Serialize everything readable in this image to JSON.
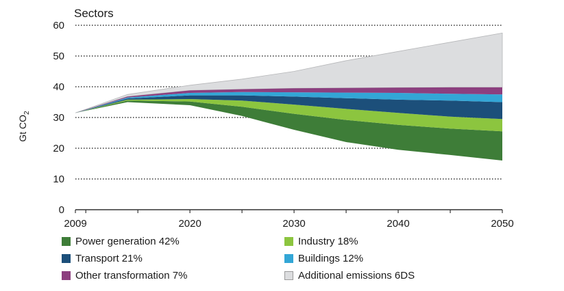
{
  "chart_data": {
    "type": "area",
    "title": "Sectors",
    "ylabel": "Gt CO",
    "ylabel_sub": "2",
    "ylim": [
      0,
      60
    ],
    "xlim": [
      2009,
      2050
    ],
    "y_ticks": [
      "0",
      "10",
      "20",
      "30",
      "40",
      "50",
      "60"
    ],
    "x_ticks": [
      "2009",
      "2020",
      "2030",
      "2040",
      "2050"
    ],
    "grid": "horizontal dotted",
    "x": [
      2009,
      2014,
      2020,
      2025,
      2030,
      2035,
      2040,
      2045,
      2050
    ],
    "baseline_6ds": [
      31.5,
      37.5,
      40.5,
      42.5,
      45,
      48.5,
      51.5,
      54.5,
      57.5
    ],
    "reduced_emissions": [
      31.5,
      35,
      34,
      30.5,
      26,
      22,
      19.5,
      17.8,
      16
    ],
    "series": [
      {
        "name": "Power generation  42%",
        "color": "#3e7d38",
        "top": [
          31.5,
          35.5,
          35.2,
          33.5,
          31.2,
          29.2,
          27.6,
          26.4,
          25.5
        ]
      },
      {
        "name": "Industry  18%",
        "color": "#8cc53f",
        "top": [
          31.5,
          35.8,
          36,
          35.5,
          34.2,
          32.8,
          31.5,
          30.3,
          29.5
        ]
      },
      {
        "name": "Transport  21%",
        "color": "#1c4f7a",
        "top": [
          31.5,
          36.2,
          37.2,
          37.2,
          36.8,
          36.3,
          35.8,
          35.5,
          35
        ]
      },
      {
        "name": "Buildings 12%",
        "color": "#33a6d6",
        "top": [
          31.5,
          36.5,
          38,
          38.3,
          38.2,
          38.1,
          38,
          37.7,
          37.5
        ]
      },
      {
        "name": "Other transformation  7%",
        "color": "#8c3f7f",
        "top": [
          31.5,
          36.8,
          38.8,
          39.2,
          39.5,
          39.6,
          39.7,
          39.8,
          39.8
        ]
      },
      {
        "name": "Additional emissions 6DS",
        "color": "#dcdddf"
      }
    ],
    "legend_position": "bottom"
  }
}
